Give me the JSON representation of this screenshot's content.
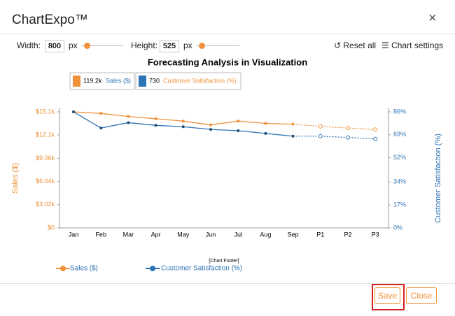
{
  "header": {
    "title": "ChartExpo™",
    "close": "×"
  },
  "controls": {
    "width_label": "Width:",
    "width": "800",
    "unit": "px",
    "height_label": "Height:",
    "height": "525",
    "reset": "Reset all",
    "settings": "Chart settings"
  },
  "chart_data": {
    "type": "line",
    "title": "Forecasting Analysis in Visualization",
    "categories": [
      "Jan",
      "Feb",
      "Mar",
      "Apr",
      "May",
      "Jun",
      "Jul",
      "Aug",
      "Sep"
    ],
    "forecast_categories": [
      "P1",
      "P2",
      "P3"
    ],
    "summary": [
      "119.2k",
      "730"
    ],
    "series": [
      {
        "name": "Sales ($)",
        "color": "#f0913a",
        "values": [
          15100,
          14900,
          14500,
          14200,
          13900,
          13400,
          13900,
          13600,
          13500
        ],
        "forecast": [
          13200,
          13000,
          12800
        ]
      },
      {
        "name": "Customer Satisfaction (%)",
        "color": "#2e75b6",
        "axis": "y2",
        "values": [
          86,
          74,
          78,
          76,
          75,
          73,
          72,
          70,
          68
        ],
        "forecast": [
          68,
          67,
          66
        ]
      }
    ],
    "y_label": "Sales ($)",
    "y2_label": "Customer Satisfaction (%)",
    "ylim": [
      0,
      15100
    ],
    "yticks": [
      {
        "value": 0,
        "label": "$0"
      },
      {
        "value": 3020,
        "label": "$3.02k"
      },
      {
        "value": 6040,
        "label": "$6.04k"
      },
      {
        "value": 9060,
        "label": "$9.06k"
      },
      {
        "value": 12100,
        "label": "$12.1k"
      },
      {
        "value": 15100,
        "label": "$15.1k"
      }
    ],
    "y2lim": [
      0,
      86
    ],
    "y2ticks": [
      {
        "value": 0,
        "label": "0%"
      },
      {
        "value": 17,
        "label": "17%"
      },
      {
        "value": 34,
        "label": "34%"
      },
      {
        "value": 52,
        "label": "52%"
      },
      {
        "value": 69,
        "label": "69%"
      },
      {
        "value": 86,
        "label": "86%"
      }
    ],
    "footer": "[Chart Footer]"
  },
  "buttons": {
    "save": "Save",
    "close": "Close"
  }
}
